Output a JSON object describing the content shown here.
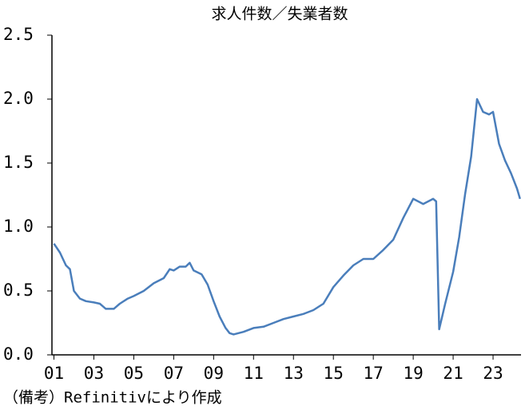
{
  "chart_data": {
    "type": "line",
    "title": "求人件数／失業者数",
    "note": "（備考）Refinitivにより作成",
    "x": [
      2001.0,
      2001.3,
      2001.6,
      2001.8,
      2002.0,
      2002.3,
      2002.6,
      2003.0,
      2003.3,
      2003.6,
      2004.0,
      2004.3,
      2004.7,
      2005.0,
      2005.5,
      2006.0,
      2006.5,
      2006.8,
      2007.0,
      2007.3,
      2007.6,
      2007.8,
      2008.0,
      2008.4,
      2008.7,
      2009.0,
      2009.3,
      2009.6,
      2009.8,
      2010.0,
      2010.5,
      2011.0,
      2011.5,
      2012.0,
      2012.5,
      2013.0,
      2013.5,
      2014.0,
      2014.5,
      2015.0,
      2015.5,
      2016.0,
      2016.5,
      2017.0,
      2017.5,
      2018.0,
      2018.5,
      2019.0,
      2019.5,
      2020.0,
      2020.15,
      2020.3,
      2020.6,
      2021.0,
      2021.3,
      2021.6,
      2021.9,
      2022.2,
      2022.5,
      2022.8,
      2023.0,
      2023.3,
      2023.6,
      2023.9,
      2024.2,
      2024.35
    ],
    "series": [
      {
        "color": "#4a7ebb",
        "values": [
          0.87,
          0.8,
          0.7,
          0.67,
          0.5,
          0.44,
          0.42,
          0.41,
          0.4,
          0.36,
          0.36,
          0.4,
          0.44,
          0.46,
          0.5,
          0.56,
          0.6,
          0.67,
          0.66,
          0.69,
          0.69,
          0.72,
          0.66,
          0.63,
          0.55,
          0.42,
          0.3,
          0.21,
          0.17,
          0.16,
          0.18,
          0.21,
          0.22,
          0.25,
          0.28,
          0.3,
          0.32,
          0.35,
          0.4,
          0.53,
          0.62,
          0.7,
          0.75,
          0.75,
          0.82,
          0.9,
          1.07,
          1.22,
          1.18,
          1.22,
          1.2,
          0.2,
          0.4,
          0.65,
          0.92,
          1.26,
          1.55,
          2.0,
          1.9,
          1.88,
          1.9,
          1.65,
          1.52,
          1.42,
          1.3,
          1.22
        ]
      }
    ],
    "xlim": [
      2000.9,
      2024.4
    ],
    "xticks": [
      {
        "value": 2001,
        "label": "01"
      },
      {
        "value": 2003,
        "label": "03"
      },
      {
        "value": 2005,
        "label": "05"
      },
      {
        "value": 2007,
        "label": "07"
      },
      {
        "value": 2009,
        "label": "09"
      },
      {
        "value": 2011,
        "label": "11"
      },
      {
        "value": 2013,
        "label": "13"
      },
      {
        "value": 2015,
        "label": "15"
      },
      {
        "value": 2017,
        "label": "17"
      },
      {
        "value": 2019,
        "label": "19"
      },
      {
        "value": 2021,
        "label": "21"
      },
      {
        "value": 2023,
        "label": "23"
      }
    ],
    "ylim": [
      0,
      2.5
    ],
    "yticks": [
      {
        "value": 0,
        "label": "0.0"
      },
      0.5,
      {
        "value": 1,
        "label": "1.0"
      },
      1.5,
      {
        "value": 2,
        "label": "2.0"
      },
      2.5
    ]
  }
}
